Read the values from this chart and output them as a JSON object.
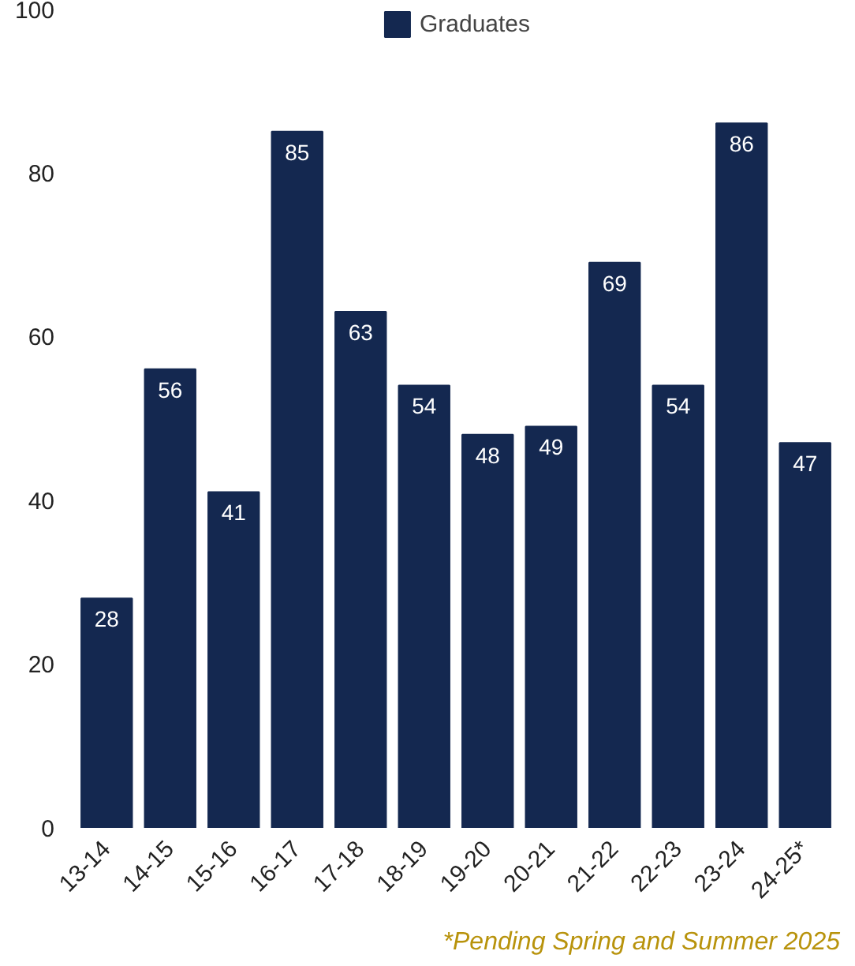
{
  "chart_data": {
    "type": "bar",
    "categories": [
      "13-14",
      "14-15",
      "15-16",
      "16-17",
      "17-18",
      "18-19",
      "19-20",
      "20-21",
      "21-22",
      "22-23",
      "23-24",
      "24-25*"
    ],
    "series": [
      {
        "name": "Graduates",
        "color": "#142850",
        "values": [
          28,
          56,
          41,
          85,
          63,
          54,
          48,
          49,
          69,
          54,
          86,
          47
        ]
      }
    ],
    "ylim": [
      0,
      100
    ],
    "yticks": [
      0,
      20,
      40,
      60,
      80,
      100
    ],
    "data_labels": true,
    "legend": "top",
    "grid": false,
    "annotations": [
      "*Pending Spring and Summer 2025"
    ]
  }
}
